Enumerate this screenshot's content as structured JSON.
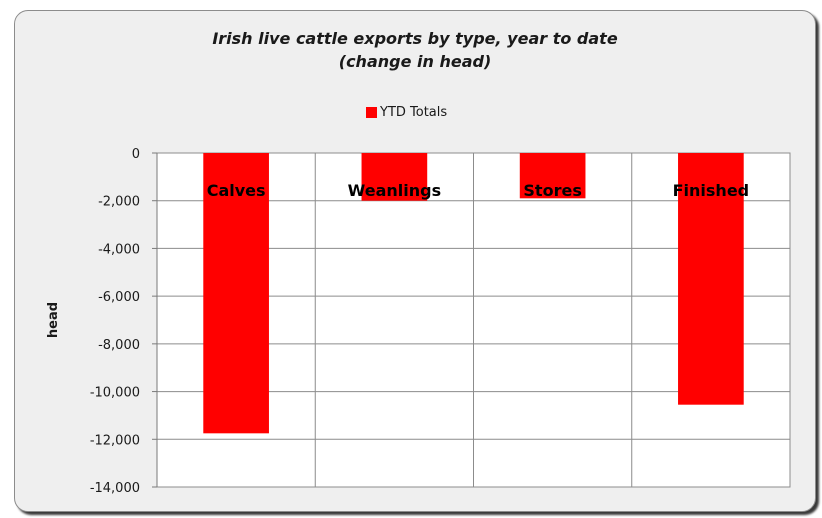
{
  "chart_data": {
    "type": "bar",
    "title_lines": [
      "Irish live cattle exports by type, year to date",
      "(change in head)"
    ],
    "xlabel": "",
    "ylabel": "head",
    "categories": [
      "Calves",
      "Weanlings",
      "Stores",
      "Finished"
    ],
    "series": [
      {
        "name": "YTD Totals",
        "values": [
          -11750,
          -2000,
          -1900,
          -10550
        ],
        "color": "#ff0000"
      }
    ],
    "ylim": [
      -14000,
      0
    ],
    "yticks": [
      0,
      -2000,
      -4000,
      -6000,
      -8000,
      -10000,
      -12000,
      -14000
    ],
    "ytick_labels": [
      "0",
      "-2,000",
      "-4,000",
      "-6,000",
      "-8,000",
      "-10,000",
      "-12,000",
      "-14,000"
    ],
    "grid": true,
    "legend_position": "top-center"
  }
}
